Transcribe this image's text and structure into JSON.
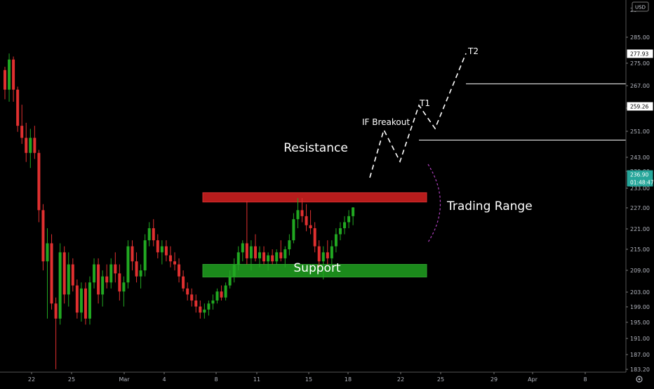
{
  "chart_data": {
    "type": "candlestick",
    "currency": "USD",
    "y_ticks": [
      "285.00",
      "275.00",
      "267.00",
      "259.00",
      "251.00",
      "243.00",
      "239.00",
      "233.00",
      "227.00",
      "221.00",
      "215.00",
      "209.00",
      "203.00",
      "199.00",
      "195.00",
      "191.00",
      "187.00",
      "183.20"
    ],
    "y_top_partial": "29",
    "x_ticks": [
      "22",
      "25",
      "Mar",
      "4",
      "8",
      "11",
      "15",
      "18",
      "22",
      "25",
      "29",
      "Apr",
      "8"
    ],
    "price_labels": [
      {
        "name": "t2-level",
        "value": "277.93",
        "color": "#ffffff"
      },
      {
        "name": "t1-level",
        "value": "259.26",
        "color": "#ffffff"
      },
      {
        "name": "current-price",
        "value": "236.90",
        "color": "#26a69a"
      },
      {
        "name": "countdown",
        "value": "01:48:47",
        "color": "#26a69a"
      }
    ],
    "levels": {
      "t2": 277.93,
      "t1": 259.26,
      "current": 236.9
    },
    "zones": {
      "resistance": {
        "label": "Resistance",
        "top": 241.8,
        "bottom": 238.7,
        "color": "#b71c1c"
      },
      "support": {
        "label": "Support",
        "top": 218.0,
        "bottom": 213.8,
        "color": "#1b8a1b"
      }
    },
    "annotations": {
      "trading_range": "Trading Range",
      "breakout": "IF Breakout",
      "t1": "T1",
      "t2": "T2"
    },
    "candle_colors": {
      "up": "#21a821",
      "down": "#e03030"
    },
    "candles": [
      [
        282.5,
        283.6,
        272.8,
        276.0
      ],
      [
        276.0,
        288.0,
        272.0,
        286.0
      ],
      [
        286.0,
        287.0,
        272.0,
        276.0
      ],
      [
        276.0,
        277.0,
        262.0,
        264.0
      ],
      [
        264.0,
        271.0,
        258.0,
        260.0
      ],
      [
        260.0,
        265.0,
        252.0,
        255.0
      ],
      [
        255.0,
        263.0,
        250.0,
        260.0
      ],
      [
        260.0,
        264.0,
        253.0,
        255.0
      ],
      [
        255.0,
        256.0,
        232.0,
        236.0
      ],
      [
        236.0,
        238.0,
        216.0,
        219.0
      ],
      [
        219.0,
        230.0,
        200.0,
        225.0
      ],
      [
        225.0,
        228.0,
        203.0,
        205.0
      ],
      [
        205.0,
        207.0,
        183.2,
        200.0
      ],
      [
        200.0,
        225.0,
        198.0,
        222.0
      ],
      [
        222.0,
        224.0,
        205.0,
        208.0
      ],
      [
        208.0,
        222.0,
        204.0,
        218.0
      ],
      [
        218.0,
        220.0,
        209.0,
        211.0
      ],
      [
        211.0,
        213.0,
        200.0,
        202.0
      ],
      [
        202.0,
        212.0,
        199.0,
        210.0
      ],
      [
        210.0,
        212.0,
        198.0,
        200.0
      ],
      [
        200.0,
        214.0,
        198.0,
        212.0
      ],
      [
        212.0,
        220.0,
        210.0,
        218.0
      ],
      [
        218.0,
        220.0,
        205.0,
        208.0
      ],
      [
        208.0,
        216.0,
        204.0,
        214.0
      ],
      [
        214.0,
        218.0,
        210.0,
        212.0
      ],
      [
        212.0,
        220.0,
        210.0,
        218.0
      ],
      [
        218.0,
        222.0,
        212.0,
        215.0
      ],
      [
        215.0,
        218.0,
        206.0,
        209.0
      ],
      [
        209.0,
        214.0,
        204.0,
        212.0
      ],
      [
        212.0,
        226.0,
        210.0,
        224.0
      ],
      [
        224.0,
        226.0,
        216.0,
        219.0
      ],
      [
        219.0,
        222.0,
        212.0,
        214.0
      ],
      [
        214.0,
        218.0,
        210.0,
        216.0
      ],
      [
        216.0,
        228.0,
        214.0,
        226.0
      ],
      [
        226.0,
        232.0,
        224.0,
        230.0
      ],
      [
        230.0,
        233.0,
        224.0,
        226.0
      ],
      [
        226.0,
        228.0,
        220.0,
        222.0
      ],
      [
        222.0,
        226.0,
        218.0,
        224.0
      ],
      [
        224.0,
        226.0,
        219.0,
        221.0
      ],
      [
        221.0,
        224.0,
        217.0,
        219.0
      ],
      [
        219.0,
        222.0,
        216.0,
        218.0
      ],
      [
        218.0,
        220.0,
        212.0,
        214.0
      ],
      [
        214.0,
        216.0,
        209.0,
        210.0
      ],
      [
        210.0,
        212.0,
        206.0,
        208.0
      ],
      [
        208.0,
        210.0,
        204.0,
        206.0
      ],
      [
        206.0,
        208.0,
        202.0,
        204.0
      ],
      [
        204.0,
        206.0,
        200.0,
        202.0
      ],
      [
        202.0,
        205.0,
        200.0,
        203.0
      ],
      [
        203.0,
        206.0,
        201.0,
        205.0
      ],
      [
        205.0,
        208.0,
        203.0,
        206.0
      ],
      [
        206.0,
        210.0,
        205.0,
        209.0
      ],
      [
        209.0,
        211.0,
        206.0,
        207.0
      ],
      [
        207.0,
        212.0,
        206.0,
        211.0
      ],
      [
        211.0,
        216.0,
        210.0,
        214.0
      ],
      [
        214.0,
        220.0,
        212.0,
        218.0
      ],
      [
        218.0,
        224.0,
        216.0,
        222.0
      ],
      [
        222.0,
        226.0,
        219.0,
        225.0
      ],
      [
        225.0,
        239.0,
        218.0,
        220.0
      ],
      [
        220.0,
        226.0,
        216.0,
        224.0
      ],
      [
        224.0,
        228.0,
        219.0,
        220.0
      ],
      [
        220.0,
        224.0,
        217.0,
        222.0
      ],
      [
        222.0,
        224.0,
        218.0,
        219.0
      ],
      [
        219.0,
        222.0,
        216.0,
        221.0
      ],
      [
        221.0,
        223.0,
        218.0,
        219.0
      ],
      [
        219.0,
        223.0,
        218.0,
        222.0
      ],
      [
        222.0,
        226.0,
        219.0,
        220.0
      ],
      [
        220.0,
        224.0,
        217.0,
        223.0
      ],
      [
        223.0,
        228.0,
        221.0,
        226.0
      ],
      [
        226.0,
        235.0,
        225.0,
        233.0
      ],
      [
        233.0,
        240.0,
        230.0,
        236.0
      ],
      [
        236.0,
        240.0,
        232.0,
        234.0
      ],
      [
        234.0,
        238.0,
        229.0,
        231.0
      ],
      [
        231.0,
        236.0,
        228.0,
        230.0
      ],
      [
        230.0,
        232.0,
        222.0,
        224.0
      ],
      [
        224.0,
        226.0,
        217.0,
        219.0
      ],
      [
        219.0,
        224.0,
        213.0,
        222.0
      ],
      [
        222.0,
        226.0,
        218.0,
        220.0
      ],
      [
        220.0,
        226.0,
        218.0,
        224.0
      ],
      [
        224.0,
        230.0,
        222.0,
        228.0
      ],
      [
        228.0,
        232.0,
        226.0,
        230.0
      ],
      [
        230.0,
        234.0,
        228.0,
        232.0
      ],
      [
        232.0,
        236.0,
        230.0,
        234.0
      ],
      [
        234.0,
        237.0,
        231.0,
        236.9
      ]
    ]
  }
}
